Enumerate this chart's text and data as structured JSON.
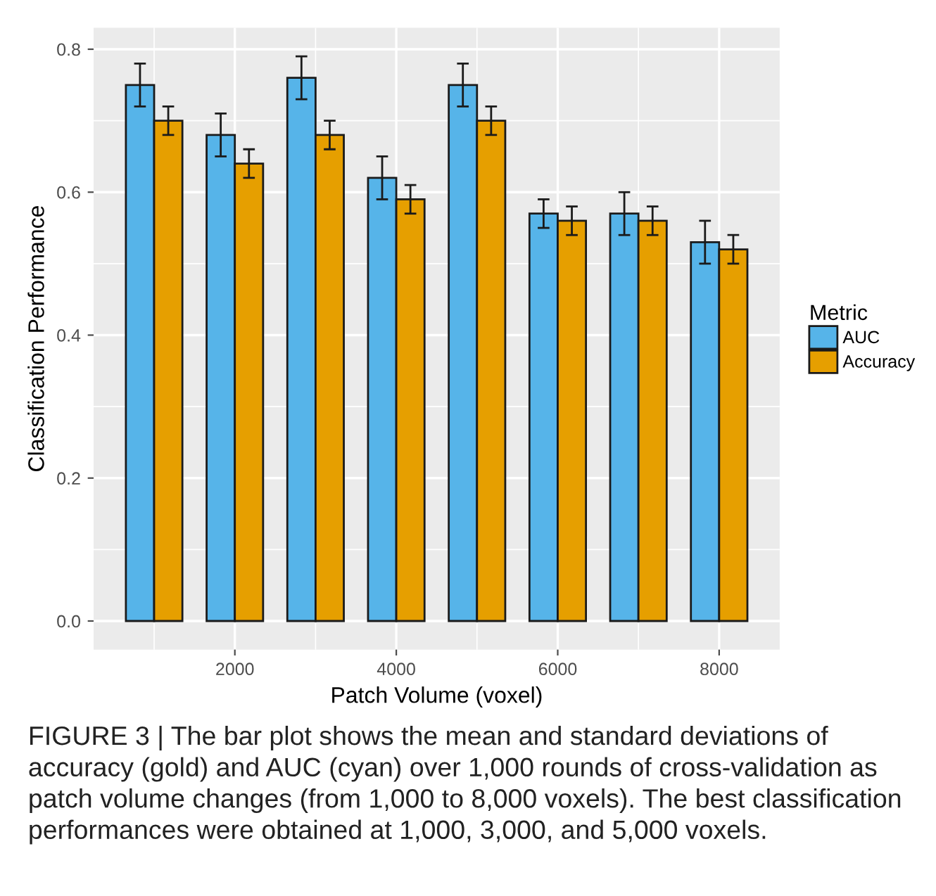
{
  "chart_data": {
    "type": "bar",
    "xlabel": "Patch Volume (voxel)",
    "ylabel": "Classification Performance",
    "legend_title": "Metric",
    "x": [
      1000,
      2000,
      3000,
      4000,
      5000,
      6000,
      7000,
      8000
    ],
    "series": [
      {
        "name": "AUC",
        "color": "#56b4e9",
        "values": [
          0.75,
          0.68,
          0.76,
          0.62,
          0.75,
          0.57,
          0.57,
          0.53
        ],
        "errors": [
          0.03,
          0.03,
          0.03,
          0.03,
          0.03,
          0.02,
          0.03,
          0.03
        ]
      },
      {
        "name": "Accuracy",
        "color": "#e69f00",
        "values": [
          0.7,
          0.64,
          0.68,
          0.59,
          0.7,
          0.56,
          0.56,
          0.52
        ],
        "errors": [
          0.02,
          0.02,
          0.02,
          0.02,
          0.02,
          0.02,
          0.02,
          0.02
        ]
      }
    ],
    "xlim": [
      250,
      8750
    ],
    "xticks": [
      2000,
      4000,
      6000,
      8000
    ],
    "ylim": [
      -0.04,
      0.83
    ],
    "yticks": [
      {
        "value": 0,
        "label": "0.0"
      },
      0.2,
      0.4,
      0.6,
      0.8
    ],
    "grid": true,
    "legend": "right",
    "annotations": [
      "FIGURE 3 | The bar plot shows the mean and standard deviations of accuracy (gold) and AUC (cyan) over 1,000 rounds of cross-validation as patch volume changes (from 1,000 to 8,000 voxels). The best classification performances were obtained at 1,000, 3,000, and 5,000 voxels."
    ]
  }
}
